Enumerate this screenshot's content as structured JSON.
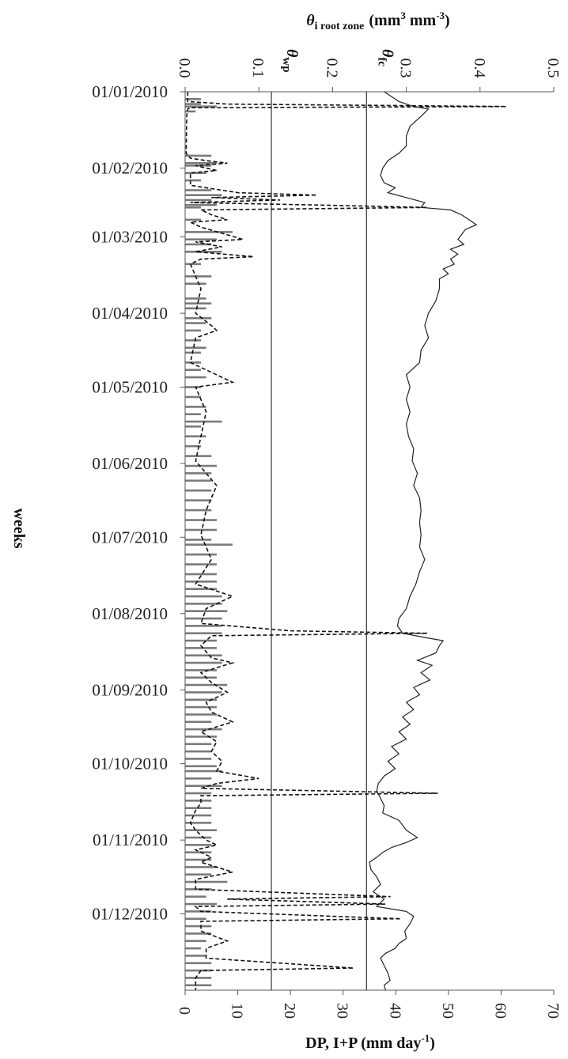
{
  "chart_data": {
    "type": "bar",
    "top_axis": {
      "title": "θi root zone (mm³ mm⁻³)",
      "title_symbol": "θ",
      "title_subscript": "i root zone",
      "title_main": "(mm",
      "title_sup1": "3",
      "title_mid": " mm",
      "title_sup2": "-3",
      "title_end": ")",
      "range": [
        0,
        0.5
      ],
      "ticks": [
        "0.0",
        "0.1",
        "0.2",
        "0.3",
        "0.4",
        "0.5"
      ],
      "tick_values": [
        0,
        0.1,
        0.2,
        0.3,
        0.4,
        0.5
      ]
    },
    "bottom_axis": {
      "title_main": "DP, I+P (mm day",
      "title_sup": "-1",
      "title_end": ")",
      "range": [
        0,
        70
      ],
      "ticks": [
        "0",
        "10",
        "20",
        "30",
        "40",
        "50",
        "60",
        "70"
      ],
      "tick_values": [
        0,
        10,
        20,
        30,
        40,
        50,
        60,
        70
      ]
    },
    "date_axis": {
      "title": "weeks",
      "labels": [
        "01/01/2010",
        "01/02/2010",
        "01/03/2010",
        "01/04/2010",
        "01/05/2010",
        "01/06/2010",
        "01/07/2010",
        "01/08/2010",
        "01/09/2010",
        "01/10/2010",
        "01/11/2010",
        "01/12/2010"
      ],
      "label_days": [
        0,
        31,
        59,
        90,
        120,
        151,
        181,
        212,
        243,
        273,
        304,
        334
      ],
      "range_days": [
        0,
        365
      ]
    },
    "reference_lines": [
      {
        "name": "wp",
        "symbol": "θ",
        "label": "wp",
        "value": 0.117
      },
      {
        "name": "fc",
        "symbol": "θ",
        "label": "fc",
        "value": 0.246
      }
    ],
    "theta_series": {
      "style": "solid",
      "points": [
        [
          0,
          0.27
        ],
        [
          4,
          0.29
        ],
        [
          6,
          0.31
        ],
        [
          7,
          0.33
        ],
        [
          10,
          0.32
        ],
        [
          14,
          0.305
        ],
        [
          18,
          0.3
        ],
        [
          22,
          0.3
        ],
        [
          25,
          0.29
        ],
        [
          28,
          0.275
        ],
        [
          31,
          0.268
        ],
        [
          34,
          0.265
        ],
        [
          37,
          0.27
        ],
        [
          39,
          0.285
        ],
        [
          41,
          0.275
        ],
        [
          43,
          0.3
        ],
        [
          45,
          0.325
        ],
        [
          47,
          0.32
        ],
        [
          48,
          0.36
        ],
        [
          50,
          0.375
        ],
        [
          52,
          0.385
        ],
        [
          54,
          0.395
        ],
        [
          56,
          0.38
        ],
        [
          58,
          0.375
        ],
        [
          60,
          0.37
        ],
        [
          62,
          0.378
        ],
        [
          64,
          0.36
        ],
        [
          66,
          0.37
        ],
        [
          68,
          0.36
        ],
        [
          70,
          0.365
        ],
        [
          72,
          0.35
        ],
        [
          74,
          0.357
        ],
        [
          76,
          0.345
        ],
        [
          80,
          0.345
        ],
        [
          85,
          0.34
        ],
        [
          90,
          0.33
        ],
        [
          95,
          0.325
        ],
        [
          100,
          0.33
        ],
        [
          105,
          0.32
        ],
        [
          110,
          0.318
        ],
        [
          115,
          0.3
        ],
        [
          120,
          0.305
        ],
        [
          125,
          0.3
        ],
        [
          130,
          0.305
        ],
        [
          135,
          0.3
        ],
        [
          140,
          0.303
        ],
        [
          145,
          0.31
        ],
        [
          150,
          0.308
        ],
        [
          155,
          0.315
        ],
        [
          160,
          0.31
        ],
        [
          165,
          0.318
        ],
        [
          170,
          0.32
        ],
        [
          175,
          0.318
        ],
        [
          180,
          0.32
        ],
        [
          185,
          0.318
        ],
        [
          190,
          0.325
        ],
        [
          195,
          0.318
        ],
        [
          200,
          0.313
        ],
        [
          205,
          0.305
        ],
        [
          210,
          0.3
        ],
        [
          214,
          0.29
        ],
        [
          217,
          0.288
        ],
        [
          220,
          0.295
        ],
        [
          222,
          0.33
        ],
        [
          223,
          0.35
        ],
        [
          225,
          0.345
        ],
        [
          228,
          0.34
        ],
        [
          231,
          0.315
        ],
        [
          233,
          0.335
        ],
        [
          236,
          0.32
        ],
        [
          239,
          0.332
        ],
        [
          242,
          0.31
        ],
        [
          245,
          0.318
        ],
        [
          248,
          0.3
        ],
        [
          251,
          0.31
        ],
        [
          254,
          0.295
        ],
        [
          257,
          0.305
        ],
        [
          260,
          0.29
        ],
        [
          263,
          0.3
        ],
        [
          266,
          0.28
        ],
        [
          269,
          0.29
        ],
        [
          272,
          0.275
        ],
        [
          275,
          0.285
        ],
        [
          278,
          0.27
        ],
        [
          281,
          0.262
        ],
        [
          284,
          0.26
        ],
        [
          287,
          0.265
        ],
        [
          290,
          0.27
        ],
        [
          293,
          0.268
        ],
        [
          296,
          0.29
        ],
        [
          300,
          0.3
        ],
        [
          303,
          0.315
        ],
        [
          305,
          0.3
        ],
        [
          307,
          0.28
        ],
        [
          309,
          0.268
        ],
        [
          311,
          0.26
        ],
        [
          313,
          0.25
        ],
        [
          316,
          0.252
        ],
        [
          319,
          0.26
        ],
        [
          322,
          0.265
        ],
        [
          325,
          0.255
        ],
        [
          328,
          0.27
        ],
        [
          331,
          0.26
        ],
        [
          333,
          0.3
        ],
        [
          335,
          0.31
        ],
        [
          338,
          0.305
        ],
        [
          341,
          0.298
        ],
        [
          344,
          0.3
        ],
        [
          346,
          0.29
        ],
        [
          348,
          0.285
        ],
        [
          350,
          0.272
        ],
        [
          352,
          0.265
        ],
        [
          355,
          0.27
        ],
        [
          358,
          0.275
        ],
        [
          361,
          0.278
        ],
        [
          363,
          0.27
        ],
        [
          365,
          0.272
        ]
      ]
    },
    "dp_series": {
      "style": "dashed",
      "points": [
        [
          0,
          0.5
        ],
        [
          4,
          0.5
        ],
        [
          5,
          8
        ],
        [
          6,
          61
        ],
        [
          6.5,
          1
        ],
        [
          7,
          0.5
        ],
        [
          10,
          0.3
        ],
        [
          25,
          0.2
        ],
        [
          27,
          1
        ],
        [
          28,
          4
        ],
        [
          29,
          8
        ],
        [
          30,
          2
        ],
        [
          32,
          6
        ],
        [
          33,
          1
        ],
        [
          38,
          1
        ],
        [
          41,
          10
        ],
        [
          42,
          25
        ],
        [
          43,
          5
        ],
        [
          44,
          18
        ],
        [
          45,
          1
        ],
        [
          46,
          25
        ],
        [
          47,
          46
        ],
        [
          48,
          3
        ],
        [
          50,
          5
        ],
        [
          52,
          8
        ],
        [
          53,
          1
        ],
        [
          55,
          3
        ],
        [
          60,
          11
        ],
        [
          61,
          2
        ],
        [
          63,
          7
        ],
        [
          65,
          2
        ],
        [
          67,
          13
        ],
        [
          68,
          3
        ],
        [
          70,
          1
        ],
        [
          80,
          3
        ],
        [
          90,
          2
        ],
        [
          95,
          5
        ],
        [
          97,
          6
        ],
        [
          100,
          2
        ],
        [
          110,
          1
        ],
        [
          118,
          9
        ],
        [
          120,
          2
        ],
        [
          130,
          4
        ],
        [
          140,
          3
        ],
        [
          150,
          2
        ],
        [
          160,
          6
        ],
        [
          170,
          4
        ],
        [
          180,
          3
        ],
        [
          190,
          5
        ],
        [
          200,
          2
        ],
        [
          205,
          9
        ],
        [
          210,
          4
        ],
        [
          216,
          3
        ],
        [
          219,
          20
        ],
        [
          220,
          46
        ],
        [
          221,
          5
        ],
        [
          225,
          3
        ],
        [
          230,
          5
        ],
        [
          232,
          9
        ],
        [
          236,
          3
        ],
        [
          240,
          5
        ],
        [
          244,
          8
        ],
        [
          248,
          4
        ],
        [
          252,
          5
        ],
        [
          256,
          9
        ],
        [
          260,
          3
        ],
        [
          264,
          6
        ],
        [
          268,
          5
        ],
        [
          272,
          7
        ],
        [
          276,
          6
        ],
        [
          279,
          14
        ],
        [
          281,
          6
        ],
        [
          283,
          3
        ],
        [
          285,
          48
        ],
        [
          286,
          3
        ],
        [
          289,
          3
        ],
        [
          292,
          2
        ],
        [
          297,
          1
        ],
        [
          300,
          2
        ],
        [
          304,
          4
        ],
        [
          306,
          6
        ],
        [
          308,
          2
        ],
        [
          311,
          5
        ],
        [
          313,
          3
        ],
        [
          317,
          9
        ],
        [
          320,
          2
        ],
        [
          324,
          2
        ],
        [
          327,
          39
        ],
        [
          328,
          8
        ],
        [
          330,
          38
        ],
        [
          331,
          2
        ],
        [
          333,
          3
        ],
        [
          336,
          41
        ],
        [
          337,
          3
        ],
        [
          341,
          3
        ],
        [
          345,
          8
        ],
        [
          348,
          4
        ],
        [
          352,
          4
        ],
        [
          356,
          32
        ],
        [
          357,
          3
        ],
        [
          360,
          2
        ],
        [
          365,
          2
        ]
      ]
    },
    "ip_bars": {
      "color": "#7a7a7a",
      "points": [
        [
          3,
          3
        ],
        [
          5,
          3
        ],
        [
          6,
          6
        ],
        [
          8,
          2
        ],
        [
          26,
          5
        ],
        [
          29,
          6
        ],
        [
          30,
          5
        ],
        [
          33,
          4
        ],
        [
          36,
          3
        ],
        [
          40,
          5
        ],
        [
          42,
          7
        ],
        [
          44,
          5
        ],
        [
          46,
          6
        ],
        [
          47,
          3
        ],
        [
          52,
          3
        ],
        [
          57,
          9
        ],
        [
          60,
          6
        ],
        [
          62,
          5
        ],
        [
          65,
          7
        ],
        [
          70,
          3
        ],
        [
          75,
          5
        ],
        [
          78,
          4
        ],
        [
          84,
          4
        ],
        [
          86,
          5
        ],
        [
          88,
          4
        ],
        [
          92,
          5
        ],
        [
          94,
          4
        ],
        [
          97,
          3
        ],
        [
          101,
          3
        ],
        [
          104,
          4
        ],
        [
          106,
          3
        ],
        [
          110,
          3
        ],
        [
          113,
          3
        ],
        [
          116,
          4
        ],
        [
          120,
          3
        ],
        [
          124,
          3
        ],
        [
          128,
          4
        ],
        [
          131,
          3
        ],
        [
          134,
          7
        ],
        [
          136,
          3
        ],
        [
          140,
          4
        ],
        [
          144,
          3
        ],
        [
          148,
          5
        ],
        [
          152,
          6
        ],
        [
          155,
          5
        ],
        [
          158,
          5
        ],
        [
          162,
          5
        ],
        [
          166,
          5
        ],
        [
          170,
          5
        ],
        [
          174,
          6
        ],
        [
          178,
          6
        ],
        [
          182,
          5
        ],
        [
          184,
          9
        ],
        [
          188,
          6
        ],
        [
          192,
          6
        ],
        [
          196,
          6
        ],
        [
          199,
          6
        ],
        [
          202,
          6
        ],
        [
          205,
          7
        ],
        [
          208,
          7
        ],
        [
          211,
          8
        ],
        [
          214,
          7
        ],
        [
          217,
          7
        ],
        [
          220,
          7
        ],
        [
          223,
          6
        ],
        [
          226,
          6
        ],
        [
          229,
          7
        ],
        [
          232,
          7
        ],
        [
          235,
          6
        ],
        [
          238,
          6
        ],
        [
          241,
          8
        ],
        [
          244,
          7
        ],
        [
          247,
          6
        ],
        [
          250,
          6
        ],
        [
          253,
          6
        ],
        [
          256,
          5
        ],
        [
          259,
          7
        ],
        [
          262,
          6
        ],
        [
          265,
          5
        ],
        [
          268,
          5
        ],
        [
          271,
          5
        ],
        [
          274,
          6
        ],
        [
          276,
          7
        ],
        [
          279,
          5
        ],
        [
          282,
          7
        ],
        [
          285,
          5
        ],
        [
          288,
          5
        ],
        [
          291,
          5
        ],
        [
          294,
          5
        ],
        [
          297,
          5
        ],
        [
          300,
          6
        ],
        [
          303,
          5
        ],
        [
          306,
          5
        ],
        [
          309,
          5
        ],
        [
          312,
          5
        ],
        [
          315,
          6
        ],
        [
          318,
          5
        ],
        [
          321,
          8
        ],
        [
          324,
          5
        ],
        [
          327,
          4
        ],
        [
          330,
          6
        ],
        [
          333,
          5
        ],
        [
          336,
          4
        ],
        [
          339,
          5
        ],
        [
          342,
          5
        ],
        [
          345,
          4
        ],
        [
          348,
          3
        ],
        [
          351,
          4
        ],
        [
          354,
          5
        ],
        [
          357,
          5
        ],
        [
          360,
          5
        ],
        [
          363,
          5
        ]
      ]
    }
  }
}
